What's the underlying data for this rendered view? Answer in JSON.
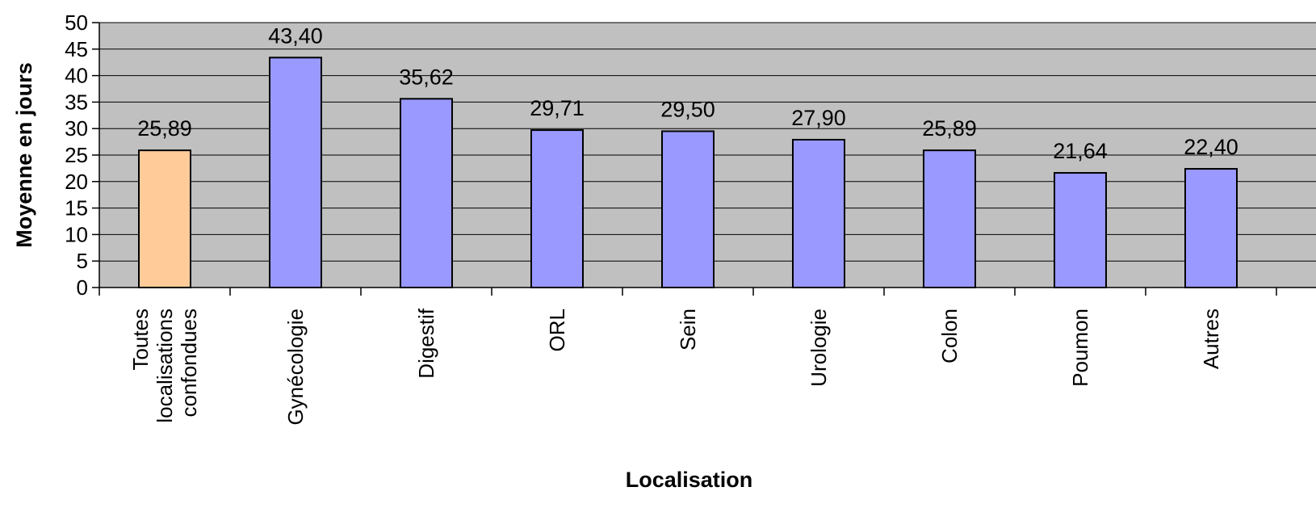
{
  "chart_data": {
    "type": "bar",
    "title": "",
    "xlabel": "Localisation",
    "ylabel": "Moyenne en jours",
    "ylim": [
      0,
      50
    ],
    "ytick_step": 5,
    "grid": true,
    "plot_background": "#c0c0c0",
    "categories": [
      [
        "Toutes",
        "localisations",
        "confondues"
      ],
      [
        "Gynécologie"
      ],
      [
        "Digestif"
      ],
      [
        "ORL"
      ],
      [
        "Sein"
      ],
      [
        "Urologie"
      ],
      [
        "Colon"
      ],
      [
        "Poumon"
      ],
      [
        "Autres"
      ]
    ],
    "values": [
      25.89,
      43.4,
      35.62,
      29.71,
      29.5,
      27.9,
      25.89,
      21.64,
      22.4
    ],
    "value_labels": [
      "25,89",
      "43,40",
      "35,62",
      "29,71",
      "29,50",
      "27,90",
      "25,89",
      "21,64",
      "22,40"
    ],
    "bar_colors": [
      "#ffcc99",
      "#9999ff",
      "#9999ff",
      "#9999ff",
      "#9999ff",
      "#9999ff",
      "#9999ff",
      "#9999ff",
      "#9999ff"
    ]
  }
}
